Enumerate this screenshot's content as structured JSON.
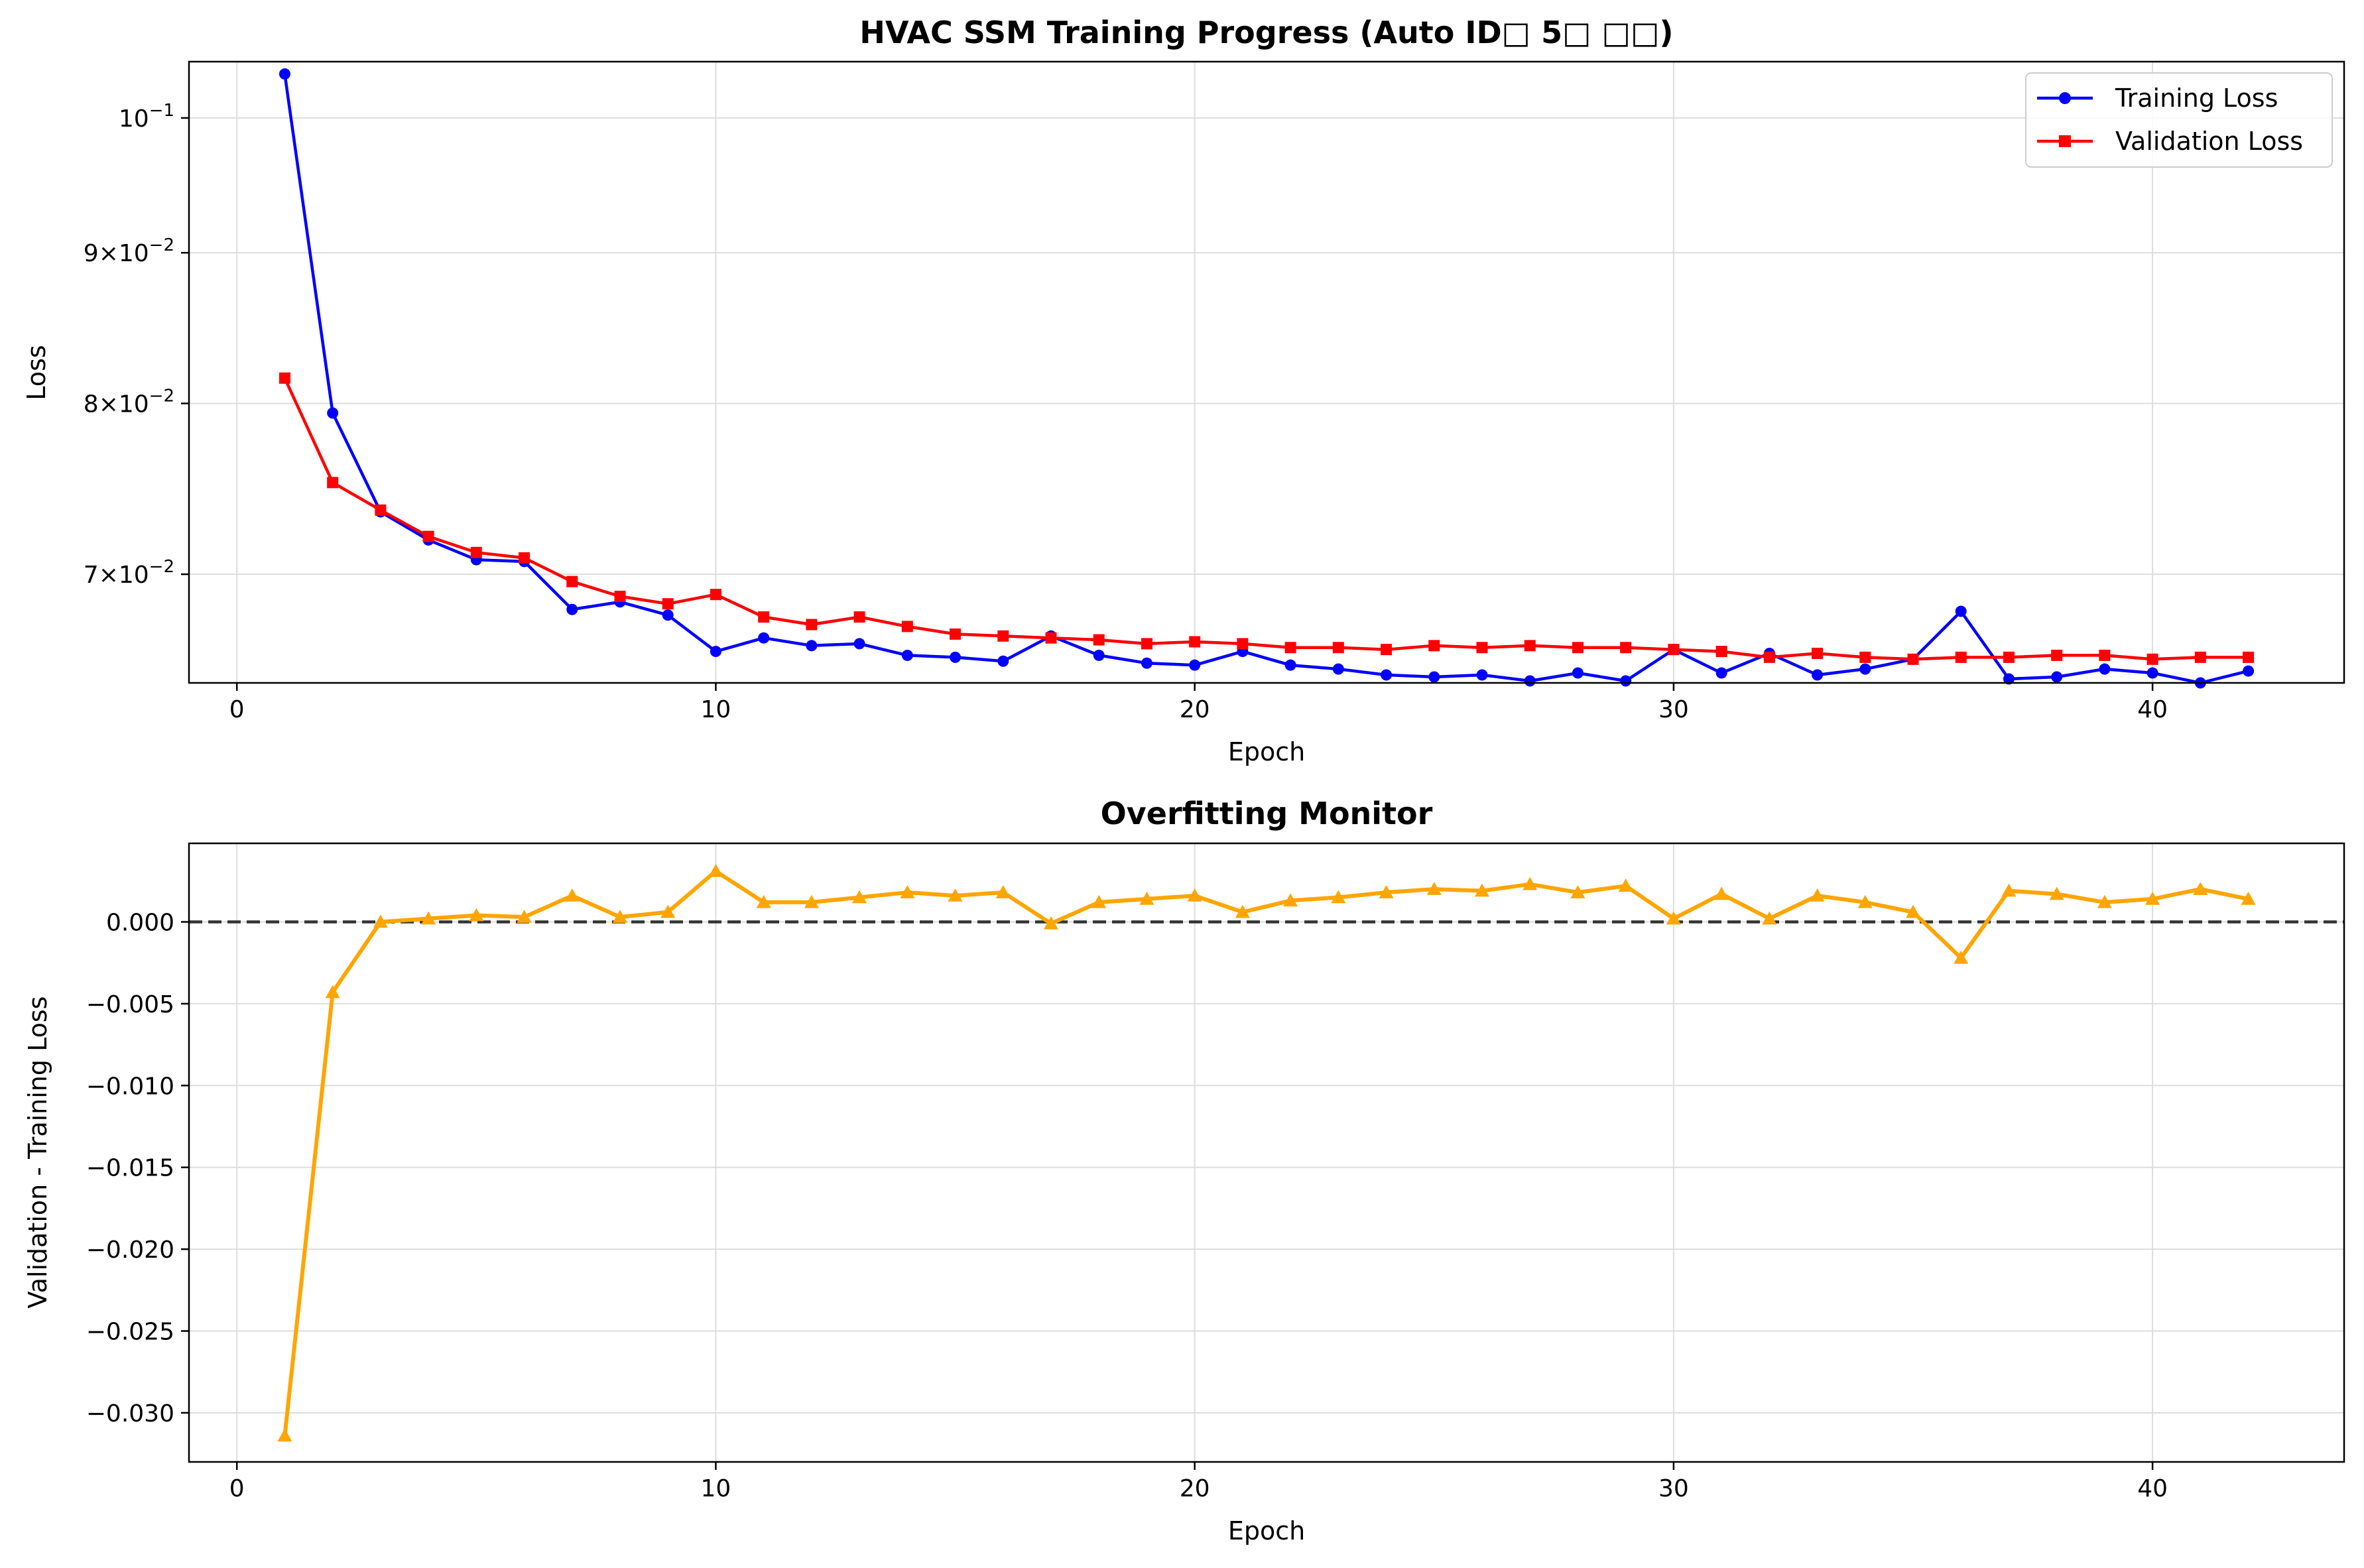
{
  "colors": {
    "training": "#0000ff",
    "validation": "#ff0000",
    "gap": "#ffa500",
    "zero_line": "#333333",
    "grid": "#dddddd"
  },
  "chart_data": [
    {
      "type": "line",
      "title": "HVAC SSM Training Progress (Auto ID□ 5□ □□)",
      "xlabel": "Epoch",
      "ylabel": "Loss",
      "yscale": "log",
      "xlim": [
        -1,
        44
      ],
      "ylim": [
        0.0643,
        0.1045
      ],
      "xticks": [
        0,
        10,
        20,
        30,
        40
      ],
      "xtick_labels": [
        "0",
        "10",
        "20",
        "30",
        "40"
      ],
      "yticks": [
        0.07,
        0.08,
        0.09,
        0.1
      ],
      "ytick_labels": [
        {
          "base": "7",
          "mid": "×",
          "pow": "10",
          "exp": "−2"
        },
        {
          "base": "8",
          "mid": "×",
          "pow": "10",
          "exp": "−2"
        },
        {
          "base": "9",
          "mid": "×",
          "pow": "10",
          "exp": "−2"
        },
        {
          "base": "",
          "mid": "",
          "pow": "10",
          "exp": "−1"
        }
      ],
      "grid": true,
      "legend": {
        "position": "top-right",
        "entries": [
          "Training Loss",
          "Validation Loss"
        ]
      },
      "x": [
        1,
        2,
        3,
        4,
        5,
        6,
        7,
        8,
        9,
        10,
        11,
        12,
        13,
        14,
        15,
        16,
        17,
        18,
        19,
        20,
        21,
        22,
        23,
        24,
        25,
        26,
        27,
        28,
        29,
        30,
        31,
        32,
        33,
        34,
        35,
        36,
        37,
        38,
        39,
        40,
        41,
        42
      ],
      "series": [
        {
          "name": "Training Loss",
          "color": "#0000ff",
          "marker": "circle",
          "values": [
            0.1035,
            0.0794,
            0.0735,
            0.0719,
            0.0708,
            0.0707,
            0.0681,
            0.0685,
            0.0678,
            0.0659,
            0.0666,
            0.0662,
            0.0663,
            0.0657,
            0.0656,
            0.0654,
            0.0667,
            0.0657,
            0.0653,
            0.0652,
            0.0659,
            0.0652,
            0.065,
            0.0647,
            0.0646,
            0.0647,
            0.0644,
            0.0648,
            0.0644,
            0.066,
            0.0648,
            0.0658,
            0.0647,
            0.065,
            0.0655,
            0.068,
            0.0645,
            0.0646,
            0.065,
            0.0648,
            0.0643,
            0.0649
          ]
        },
        {
          "name": "Validation Loss",
          "color": "#ff0000",
          "marker": "square",
          "values": [
            0.0816,
            0.0752,
            0.0736,
            0.0721,
            0.0712,
            0.0709,
            0.0696,
            0.0688,
            0.0684,
            0.0689,
            0.0677,
            0.0673,
            0.0677,
            0.0672,
            0.0668,
            0.0667,
            0.0666,
            0.0665,
            0.0663,
            0.0664,
            0.0663,
            0.0661,
            0.0661,
            0.066,
            0.0662,
            0.0661,
            0.0662,
            0.0661,
            0.0661,
            0.066,
            0.0659,
            0.0656,
            0.0658,
            0.0656,
            0.0655,
            0.0656,
            0.0656,
            0.0657,
            0.0657,
            0.0655,
            0.0656,
            0.0656
          ]
        }
      ]
    },
    {
      "type": "line",
      "title": "Overfitting Monitor",
      "xlabel": "Epoch",
      "ylabel": "Validation - Training Loss",
      "xlim": [
        -1,
        44
      ],
      "ylim": [
        -0.033,
        0.0048
      ],
      "xticks": [
        0,
        10,
        20,
        30,
        40
      ],
      "xtick_labels": [
        "0",
        "10",
        "20",
        "30",
        "40"
      ],
      "yticks": [
        0.0,
        -0.005,
        -0.01,
        -0.015,
        -0.02,
        -0.025,
        -0.03
      ],
      "ytick_labels": [
        "0.000",
        "−0.005",
        "−0.010",
        "−0.015",
        "−0.020",
        "−0.025",
        "−0.030"
      ],
      "grid": true,
      "reference_line": {
        "y": 0,
        "style": "dashed"
      },
      "x": [
        1,
        2,
        3,
        4,
        5,
        6,
        7,
        8,
        9,
        10,
        11,
        12,
        13,
        14,
        15,
        16,
        17,
        18,
        19,
        20,
        21,
        22,
        23,
        24,
        25,
        26,
        27,
        28,
        29,
        30,
        31,
        32,
        33,
        34,
        35,
        36,
        37,
        38,
        39,
        40,
        41,
        42
      ],
      "series": [
        {
          "color": "#ffa500",
          "marker": "triangle",
          "values": [
            -0.0314,
            -0.0043,
            0.0,
            0.0002,
            0.0004,
            0.0003,
            0.0016,
            0.0003,
            0.0006,
            0.0031,
            0.0012,
            0.0012,
            0.0015,
            0.0018,
            0.0016,
            0.0018,
            -0.0001,
            0.0012,
            0.0014,
            0.0016,
            0.0006,
            0.0013,
            0.0015,
            0.0018,
            0.002,
            0.0019,
            0.0023,
            0.0018,
            0.0022,
            0.0002,
            0.0017,
            0.0002,
            0.0016,
            0.0012,
            0.0006,
            -0.0022,
            0.0019,
            0.0017,
            0.0012,
            0.0014,
            0.002,
            0.0014
          ]
        }
      ]
    }
  ]
}
